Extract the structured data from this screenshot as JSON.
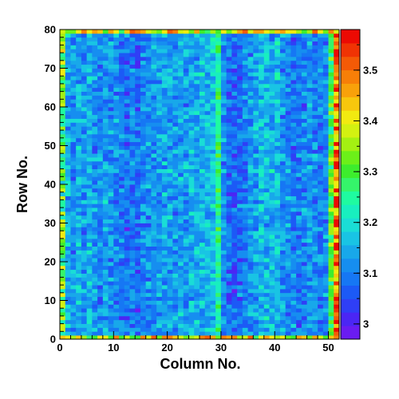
{
  "chart_data": {
    "type": "heatmap",
    "xlabel": "Column No.",
    "ylabel": "Row No.",
    "x_ticks": [
      "0",
      "10",
      "20",
      "30",
      "40",
      "50"
    ],
    "y_ticks": [
      "0",
      "10",
      "20",
      "30",
      "40",
      "50",
      "60",
      "70",
      "80"
    ],
    "xlim": [
      0,
      52
    ],
    "ylim": [
      0,
      80
    ],
    "columns": 52,
    "rows": 80,
    "colorbar": {
      "ticks": [
        "3",
        "3.1",
        "3.2",
        "3.3",
        "3.4",
        "3.5"
      ],
      "range": [
        2.97,
        3.58
      ],
      "colors": [
        "#6a1cf2",
        "#4b26f4",
        "#2f3ff6",
        "#1c5af6",
        "#1677f4",
        "#168ef0",
        "#18a8ea",
        "#19c4e4",
        "#1addd6",
        "#18efbf",
        "#1ffba0",
        "#35f56a",
        "#3ded2d",
        "#6cf019",
        "#a4f012",
        "#d3f111",
        "#f2ea10",
        "#f7c70d",
        "#f8a10a",
        "#f77f08",
        "#f45a06",
        "#f03304",
        "#ec0a03"
      ]
    },
    "column_means": [
      3.25,
      3.15,
      3.12,
      3.14,
      3.13,
      3.15,
      3.12,
      3.11,
      3.13,
      3.12,
      3.11,
      3.1,
      3.08,
      3.1,
      3.07,
      3.1,
      3.11,
      3.12,
      3.13,
      3.14,
      3.13,
      3.12,
      3.14,
      3.13,
      3.15,
      3.14,
      3.16,
      3.15,
      3.17,
      3.25,
      3.12,
      3.08,
      3.07,
      3.09,
      3.1,
      3.12,
      3.14,
      3.16,
      3.16,
      3.15,
      3.17,
      3.13,
      3.11,
      3.1,
      3.09,
      3.1,
      3.12,
      3.11,
      3.1,
      3.11,
      3.3,
      3.45
    ],
    "edge_row_value": 3.4,
    "cell_noise": 0.045
  }
}
